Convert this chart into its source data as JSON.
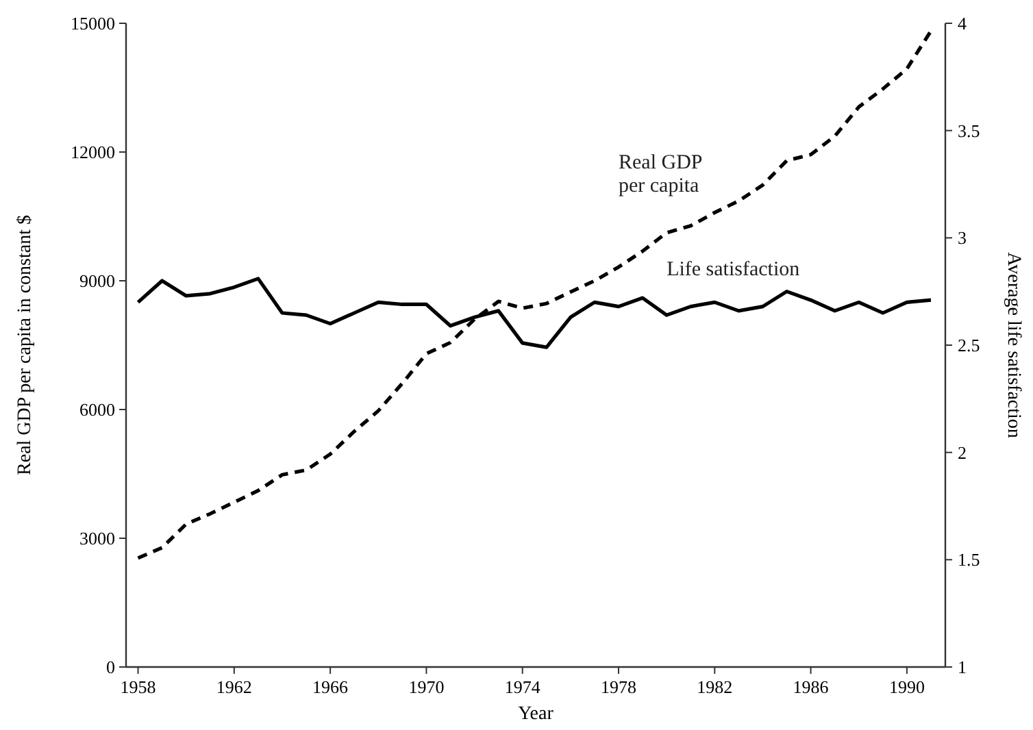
{
  "chart_data": {
    "type": "line",
    "xlabel": "Year",
    "ylabel": "Real GDP per capita in constant $",
    "y2label": "Average life satisfaction",
    "x": [
      1958,
      1959,
      1960,
      1961,
      1962,
      1963,
      1964,
      1965,
      1966,
      1967,
      1968,
      1969,
      1970,
      1971,
      1972,
      1973,
      1974,
      1975,
      1976,
      1977,
      1978,
      1979,
      1980,
      1981,
      1982,
      1983,
      1984,
      1985,
      1986,
      1987,
      1988,
      1989,
      1990,
      1991
    ],
    "xlim": [
      1957.5,
      1991.6
    ],
    "xticks": [
      1958,
      1962,
      1966,
      1970,
      1974,
      1978,
      1982,
      1986,
      1990
    ],
    "ylim": [
      0,
      15000
    ],
    "yticks": [
      0,
      3000,
      6000,
      9000,
      12000,
      15000
    ],
    "y2lim": [
      1,
      4
    ],
    "y2ticks": [
      1,
      1.5,
      2,
      2.5,
      3,
      3.5,
      4
    ],
    "legend": false,
    "grid": false,
    "series": [
      {
        "name": "Real GDP per capita",
        "color": "#000000",
        "line_style": "dashed",
        "values": [
          2540,
          2780,
          3330,
          3570,
          3840,
          4110,
          4480,
          4590,
          4960,
          5490,
          5970,
          6610,
          7300,
          7560,
          8100,
          8520,
          8360,
          8470,
          8740,
          9000,
          9320,
          9690,
          10120,
          10280,
          10590,
          10860,
          11230,
          11800,
          11940,
          12370,
          13050,
          13470,
          13940,
          14820
        ]
      },
      {
        "name": "Life satisfaction",
        "color": "#000000",
        "line_style": "solid",
        "axis": "y2",
        "values": [
          2.7,
          2.8,
          2.73,
          2.74,
          2.77,
          2.81,
          2.65,
          2.64,
          2.6,
          2.65,
          2.7,
          2.69,
          2.69,
          2.59,
          2.63,
          2.66,
          2.51,
          2.49,
          2.63,
          2.7,
          2.68,
          2.72,
          2.64,
          2.68,
          2.7,
          2.66,
          2.68,
          2.75,
          2.71,
          2.66,
          2.7,
          2.65,
          2.7,
          2.71
        ]
      }
    ]
  }
}
